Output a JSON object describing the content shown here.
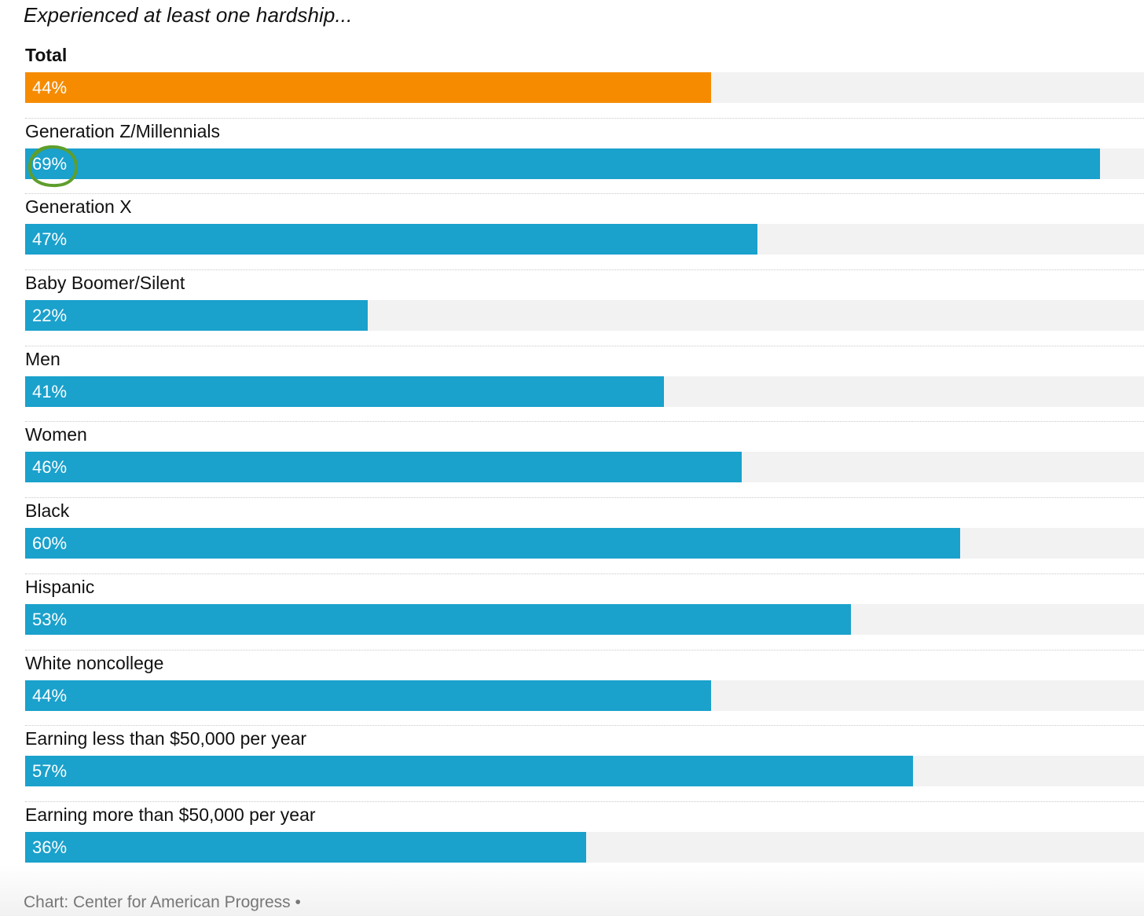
{
  "chart_data": {
    "type": "bar",
    "orientation": "horizontal",
    "subtitle": "Experienced at least one hardship...",
    "categories": [
      "Total",
      "Generation Z/Millennials",
      "Generation X",
      "Baby Boomer/Silent",
      "Men",
      "Women",
      "Black",
      "Hispanic",
      "White noncollege",
      "Earning less than $50,000 per year",
      "Earning more than $50,000 per year"
    ],
    "values": [
      44,
      69,
      47,
      22,
      41,
      46,
      60,
      53,
      44,
      57,
      36
    ],
    "value_labels": [
      "44%",
      "69%",
      "47%",
      "22%",
      "41%",
      "46%",
      "60%",
      "53%",
      "44%",
      "57%",
      "36%"
    ],
    "unit": "%",
    "xlim": [
      0,
      71.8
    ],
    "grid": false,
    "colors": {
      "total": "#f68b00",
      "group": "#1aa1cc",
      "track": "#f2f2f2",
      "annotation": "#5e9e2c"
    },
    "annotation": {
      "shape": "hand-drawn circle",
      "target": "69%"
    },
    "source": "Chart: Center for American Progress •"
  }
}
